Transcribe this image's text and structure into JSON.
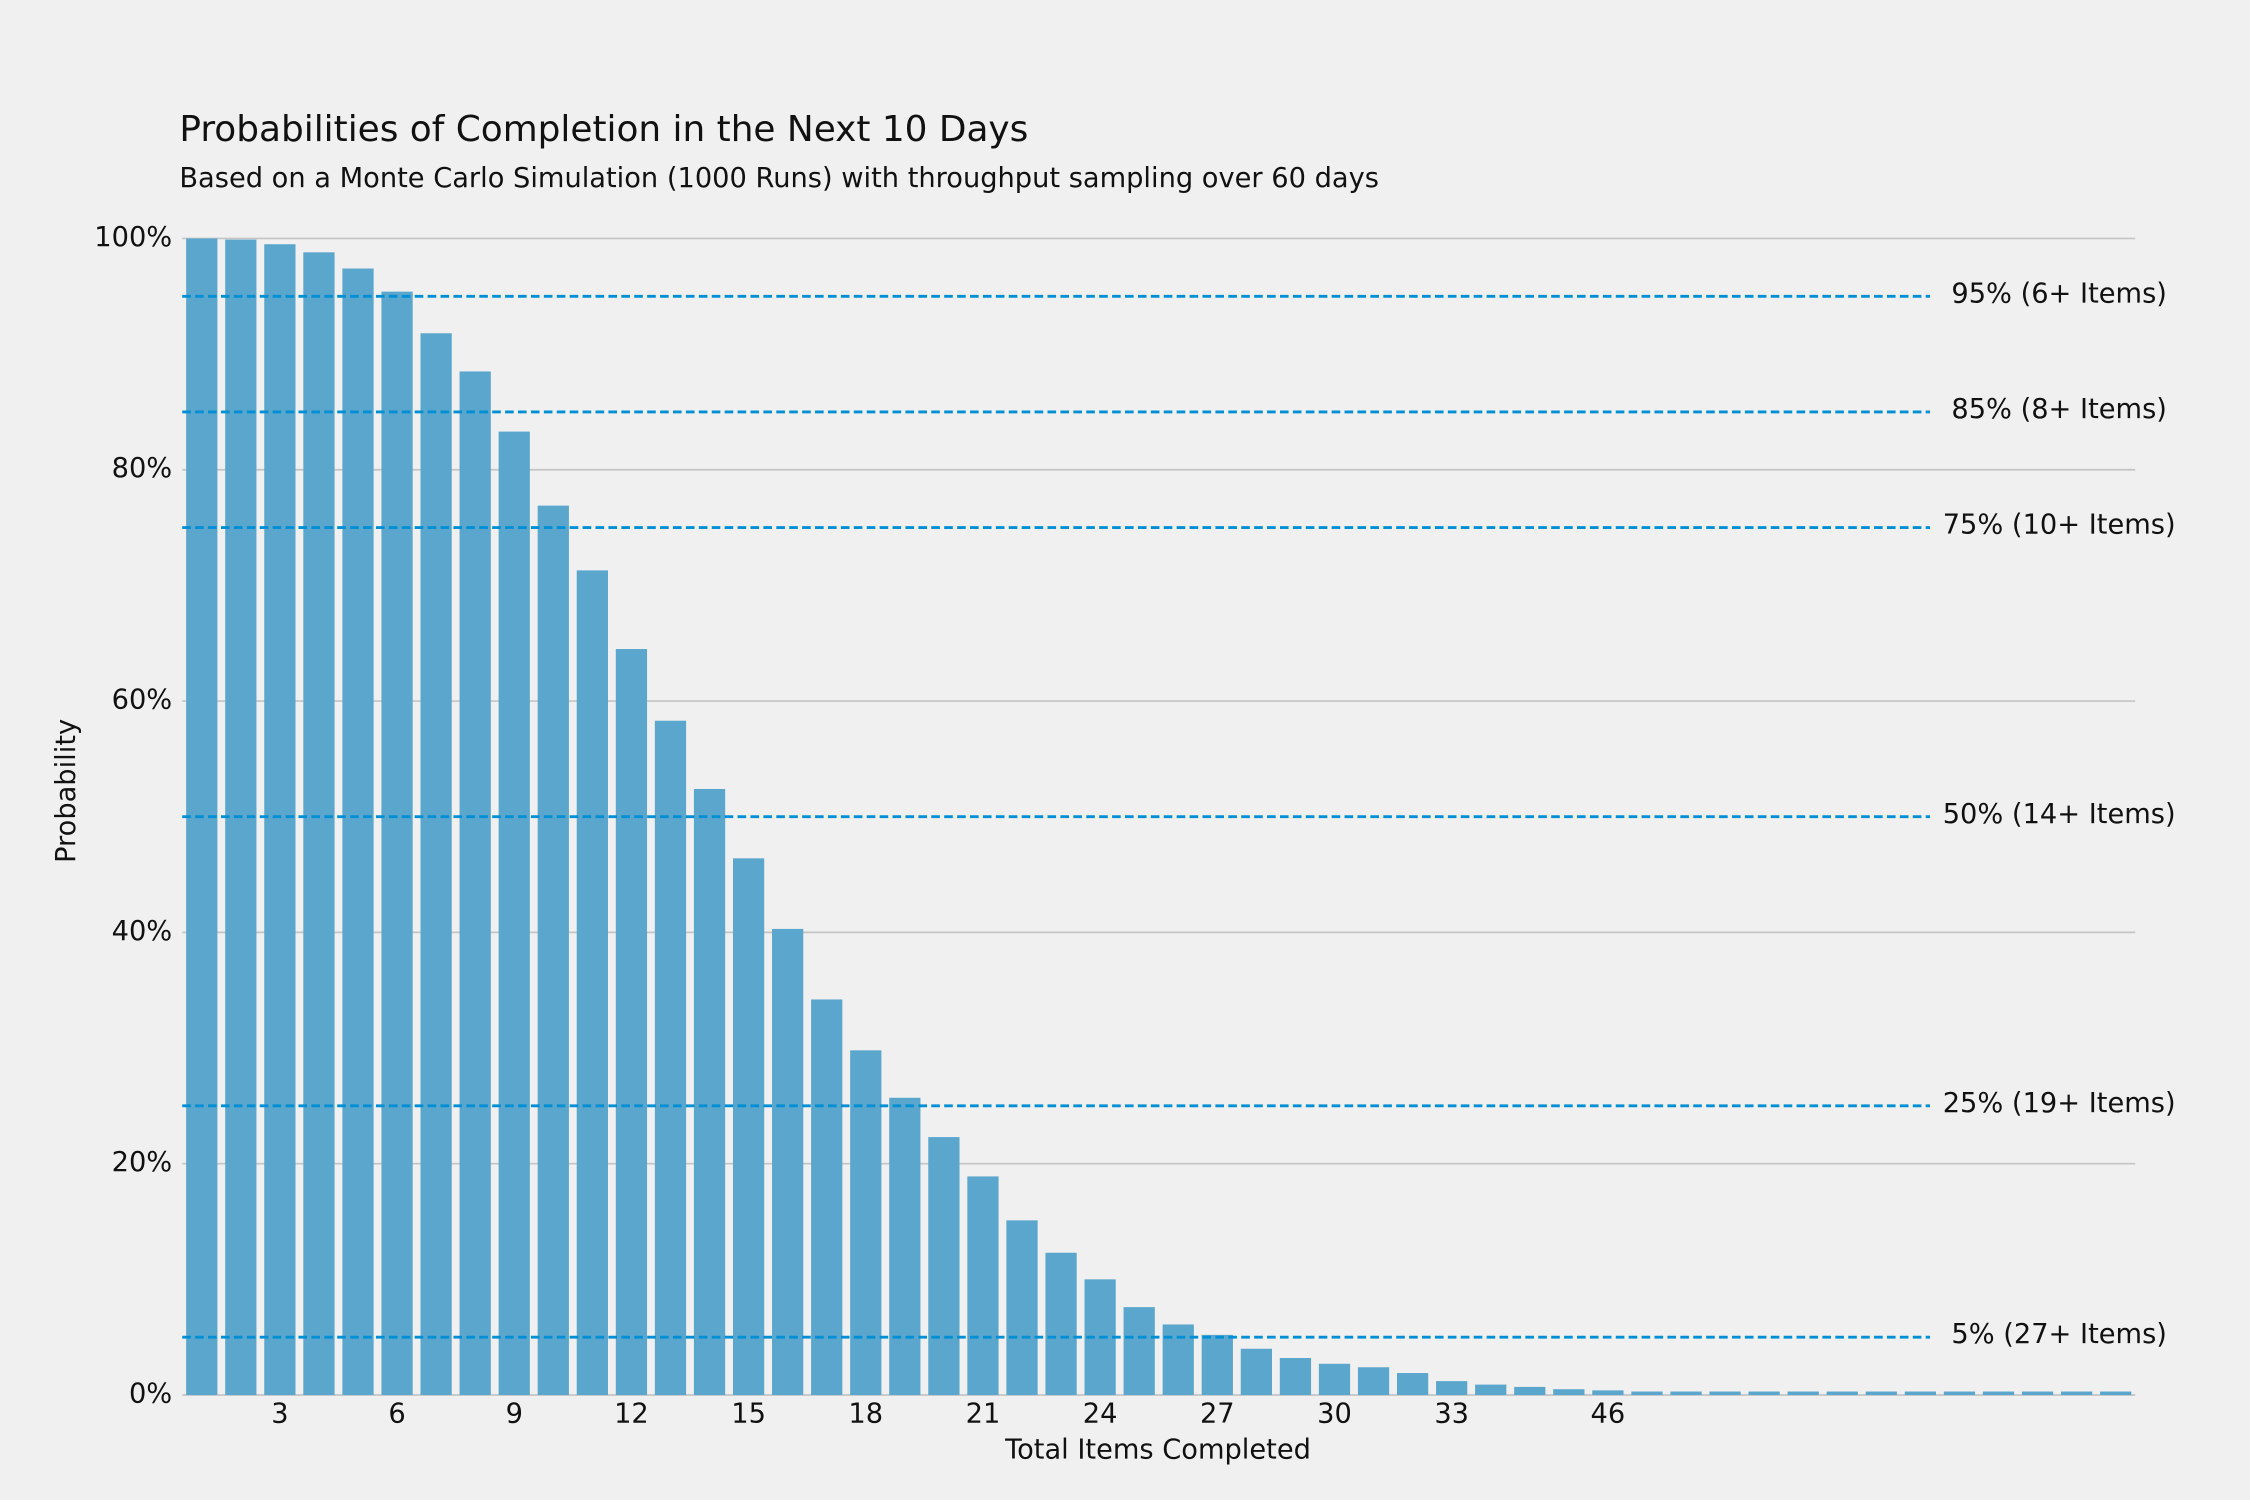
{
  "chart_data": {
    "type": "bar",
    "title": "Probabilities of Completion in the Next 10 Days",
    "subtitle": "Based on a Monte Carlo Simulation (1000 Runs) with throughput sampling over 60 days",
    "x_label": "Total Items Completed",
    "y_label": "Probability",
    "categories": [
      null,
      null,
      "3",
      null,
      null,
      "6",
      null,
      null,
      "9",
      null,
      null,
      "12",
      null,
      null,
      "15",
      null,
      null,
      "18",
      null,
      null,
      "21",
      null,
      null,
      "24",
      null,
      null,
      "27",
      null,
      null,
      "30",
      null,
      null,
      "33",
      null,
      null,
      null,
      "46",
      null,
      null,
      null,
      null,
      null,
      null,
      null,
      null,
      null,
      null,
      null,
      null,
      null
    ],
    "values": [
      100,
      99.9,
      99.5,
      98.8,
      97.4,
      95.4,
      91.8,
      88.5,
      83.3,
      76.9,
      71.3,
      64.5,
      58.3,
      52.4,
      46.4,
      40.3,
      34.2,
      29.8,
      25.7,
      22.3,
      18.9,
      15.1,
      12.3,
      10.0,
      7.6,
      6.1,
      5.2,
      4.0,
      3.2,
      2.7,
      2.4,
      1.9,
      1.2,
      0.9,
      0.7,
      0.5,
      0.4,
      0.3,
      0.3,
      0.3,
      0.3,
      0.3,
      0.3,
      0.3,
      0.3,
      0.3,
      0.3,
      0.3,
      0.3,
      0.3
    ],
    "color": "#5ba6cc",
    "ylim": [
      0,
      100
    ],
    "yticks": [
      {
        "value": 0,
        "label": "0%"
      },
      {
        "value": 20,
        "label": "20%"
      },
      {
        "value": 40,
        "label": "40%"
      },
      {
        "value": 60,
        "label": "60%"
      },
      {
        "value": 80,
        "label": "80%"
      },
      {
        "value": 100,
        "label": "100%"
      }
    ],
    "grid": true,
    "reference_lines": [
      {
        "value": 95,
        "label": "95% (6+ Items)"
      },
      {
        "value": 85,
        "label": "85% (8+ Items)"
      },
      {
        "value": 75,
        "label": "75% (10+ Items)"
      },
      {
        "value": 50,
        "label": "50% (14+ Items)"
      },
      {
        "value": 25,
        "label": "25% (19+ Items)"
      },
      {
        "value": 5,
        "label": "5% (27+ Items)"
      }
    ],
    "reference_color": "#008fd5"
  }
}
